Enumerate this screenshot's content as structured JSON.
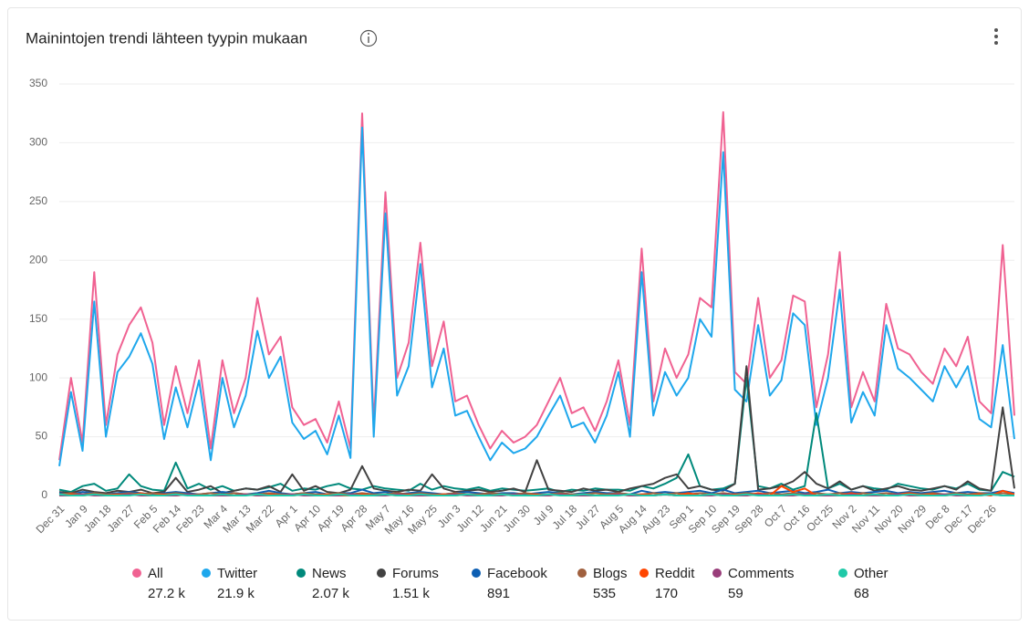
{
  "chart_data": {
    "type": "line",
    "title": "Mainintojen trendi lähteen tyypin mukaan",
    "categories": [
      "Dec 31",
      null,
      "Jan 9",
      null,
      "Jan 18",
      null,
      "Jan 27",
      null,
      "Feb 5",
      null,
      "Feb 14",
      null,
      "Feb 23",
      null,
      "Mar 4",
      null,
      "Mar 13",
      null,
      "Mar 22",
      null,
      "Apr 1",
      null,
      "Apr 10",
      null,
      "Apr 19",
      null,
      "Apr 28",
      null,
      "May 7",
      null,
      "May 16",
      null,
      "May 25",
      null,
      "Jun 3",
      null,
      "Jun 12",
      null,
      "Jun 21",
      null,
      "Jun 30",
      null,
      "Jul 9",
      null,
      "Jul 18",
      null,
      "Jul 27",
      null,
      "Aug 5",
      null,
      "Aug 14",
      null,
      "Aug 23",
      null,
      "Sep 1",
      null,
      "Sep 10",
      null,
      "Sep 19",
      null,
      "Sep 28",
      null,
      "Oct 7",
      null,
      "Oct 16",
      null,
      "Oct 25",
      null,
      "Nov 2",
      null,
      "Nov 11",
      null,
      "Nov 20",
      null,
      "Nov 29",
      null,
      "Dec 8",
      null,
      "Dec 17",
      null,
      "Dec 26",
      null,
      null
    ],
    "ylim": [
      0,
      350
    ],
    "yticks": [
      0,
      50,
      100,
      150,
      200,
      250,
      300,
      350
    ],
    "grid": true,
    "series": [
      {
        "name": "All",
        "total": "27.2 k",
        "color": "#f06292",
        "values": [
          30,
          100,
          45,
          190,
          60,
          120,
          145,
          160,
          130,
          60,
          110,
          70,
          115,
          40,
          115,
          70,
          100,
          168,
          120,
          135,
          75,
          60,
          65,
          45,
          80,
          40,
          325,
          60,
          258,
          100,
          130,
          215,
          110,
          148,
          80,
          85,
          60,
          40,
          55,
          45,
          50,
          60,
          80,
          100,
          70,
          75,
          55,
          80,
          115,
          60,
          210,
          80,
          125,
          100,
          120,
          168,
          160,
          326,
          105,
          95,
          168,
          100,
          115,
          170,
          165,
          75,
          120,
          207,
          75,
          105,
          80,
          163,
          125,
          120,
          105,
          95,
          125,
          110,
          135,
          80,
          70,
          213,
          68
        ]
      },
      {
        "name": "Twitter",
        "total": "21.9 k",
        "color": "#1ea7ec",
        "values": [
          25,
          88,
          38,
          165,
          50,
          105,
          118,
          138,
          112,
          48,
          92,
          58,
          98,
          30,
          100,
          58,
          85,
          140,
          100,
          118,
          62,
          48,
          55,
          35,
          68,
          32,
          313,
          50,
          240,
          85,
          110,
          197,
          92,
          125,
          68,
          72,
          50,
          30,
          45,
          36,
          40,
          50,
          68,
          85,
          58,
          62,
          45,
          68,
          105,
          50,
          190,
          68,
          105,
          85,
          100,
          150,
          135,
          292,
          90,
          80,
          145,
          85,
          98,
          155,
          145,
          60,
          100,
          175,
          62,
          88,
          68,
          145,
          108,
          100,
          90,
          80,
          110,
          92,
          110,
          65,
          58,
          128,
          48
        ]
      },
      {
        "name": "News",
        "total": "2.07 k",
        "color": "#00897b",
        "values": [
          5,
          3,
          8,
          10,
          4,
          6,
          18,
          8,
          5,
          4,
          28,
          6,
          10,
          5,
          8,
          4,
          6,
          5,
          7,
          10,
          4,
          6,
          5,
          8,
          10,
          6,
          5,
          8,
          6,
          5,
          4,
          10,
          5,
          8,
          6,
          5,
          7,
          4,
          6,
          5,
          4,
          5,
          6,
          3,
          5,
          4,
          6,
          5,
          5,
          4,
          8,
          6,
          10,
          15,
          35,
          8,
          5,
          6,
          10,
          100,
          8,
          6,
          10,
          5,
          8,
          70,
          6,
          10,
          5,
          8,
          6,
          5,
          10,
          8,
          6,
          5,
          8,
          6,
          10,
          5,
          4,
          20,
          16
        ]
      },
      {
        "name": "Forums",
        "total": "1.51 k",
        "color": "#424242",
        "values": [
          3,
          2,
          5,
          3,
          2,
          4,
          3,
          5,
          2,
          3,
          15,
          3,
          5,
          8,
          2,
          4,
          6,
          5,
          8,
          3,
          18,
          4,
          8,
          3,
          2,
          5,
          25,
          6,
          4,
          3,
          5,
          4,
          18,
          6,
          3,
          4,
          5,
          3,
          4,
          6,
          3,
          30,
          5,
          4,
          3,
          6,
          4,
          5,
          3,
          6,
          8,
          10,
          15,
          18,
          6,
          8,
          5,
          4,
          10,
          110,
          5,
          6,
          8,
          12,
          20,
          10,
          6,
          12,
          5,
          8,
          4,
          6,
          8,
          5,
          4,
          6,
          8,
          5,
          12,
          6,
          4,
          75,
          6
        ]
      },
      {
        "name": "Facebook",
        "total": "891",
        "color": "#0d5fb3",
        "values": [
          2,
          1,
          3,
          2,
          1,
          2,
          3,
          2,
          1,
          2,
          3,
          2,
          1,
          2,
          3,
          2,
          1,
          2,
          4,
          2,
          1,
          2,
          3,
          1,
          2,
          2,
          5,
          2,
          3,
          1,
          2,
          3,
          2,
          1,
          2,
          3,
          2,
          1,
          2,
          2,
          1,
          2,
          3,
          2,
          1,
          2,
          3,
          2,
          2,
          1,
          4,
          2,
          3,
          2,
          3,
          4,
          2,
          5,
          2,
          3,
          4,
          2,
          3,
          4,
          2,
          3,
          5,
          2,
          3,
          2,
          3,
          4,
          2,
          3,
          2,
          3,
          4,
          2,
          3,
          2,
          2,
          4,
          2
        ]
      },
      {
        "name": "Blogs",
        "total": "535",
        "color": "#a0603e",
        "values": [
          1,
          2,
          1,
          2,
          1,
          1,
          2,
          1,
          2,
          1,
          2,
          1,
          1,
          2,
          1,
          2,
          1,
          1,
          2,
          1,
          1,
          2,
          1,
          1,
          2,
          1,
          2,
          1,
          1,
          2,
          1,
          2,
          1,
          1,
          2,
          1,
          1,
          2,
          1,
          1,
          2,
          1,
          1,
          2,
          1,
          1,
          2,
          1,
          2,
          1,
          1,
          2,
          1,
          2,
          1,
          2,
          1,
          2,
          1,
          2,
          1,
          2,
          1,
          2,
          1,
          2,
          1,
          2,
          1,
          2,
          1,
          2,
          1,
          2,
          1,
          2,
          1,
          2,
          1,
          2,
          1,
          2,
          1
        ]
      },
      {
        "name": "Reddit",
        "total": "170",
        "color": "#ff4500",
        "values": [
          0,
          1,
          0,
          1,
          0,
          1,
          0,
          2,
          0,
          1,
          0,
          1,
          0,
          0,
          1,
          0,
          1,
          0,
          1,
          0,
          0,
          1,
          0,
          1,
          0,
          0,
          1,
          0,
          1,
          0,
          1,
          0,
          0,
          1,
          0,
          1,
          0,
          0,
          1,
          0,
          0,
          1,
          0,
          1,
          0,
          1,
          0,
          0,
          1,
          0,
          1,
          0,
          1,
          0,
          2,
          0,
          1,
          0,
          1,
          0,
          2,
          0,
          8,
          3,
          6,
          0,
          1,
          0,
          2,
          0,
          1,
          0,
          1,
          2,
          0,
          1,
          0,
          1,
          0,
          1,
          0,
          4,
          1
        ]
      },
      {
        "name": "Comments",
        "total": "59",
        "color": "#993d7a",
        "values": [
          0,
          0,
          1,
          0,
          0,
          0,
          1,
          0,
          0,
          0,
          0,
          1,
          0,
          0,
          0,
          0,
          1,
          0,
          0,
          0,
          1,
          0,
          0,
          0,
          0,
          1,
          0,
          0,
          0,
          1,
          0,
          0,
          0,
          0,
          1,
          0,
          0,
          0,
          0,
          1,
          0,
          0,
          0,
          1,
          0,
          0,
          0,
          0,
          1,
          0,
          0,
          0,
          1,
          0,
          0,
          0,
          0,
          1,
          0,
          0,
          1,
          0,
          0,
          0,
          1,
          0,
          0,
          0,
          1,
          0,
          0,
          0,
          1,
          0,
          0,
          0,
          1,
          0,
          0,
          0,
          1,
          0,
          0
        ]
      },
      {
        "name": "Other",
        "total": "68",
        "color": "#1fc9a8",
        "values": [
          1,
          0,
          0,
          1,
          0,
          0,
          0,
          1,
          0,
          0,
          1,
          0,
          0,
          0,
          1,
          0,
          0,
          1,
          0,
          0,
          0,
          1,
          0,
          0,
          1,
          0,
          0,
          0,
          1,
          0,
          0,
          1,
          0,
          0,
          0,
          1,
          0,
          0,
          1,
          0,
          0,
          0,
          1,
          0,
          0,
          1,
          0,
          0,
          0,
          1,
          0,
          0,
          1,
          0,
          0,
          0,
          1,
          0,
          0,
          1,
          0,
          0,
          0,
          1,
          0,
          0,
          1,
          0,
          0,
          0,
          1,
          0,
          0,
          1,
          0,
          0,
          0,
          1,
          0,
          0,
          1,
          0,
          0
        ]
      }
    ]
  }
}
